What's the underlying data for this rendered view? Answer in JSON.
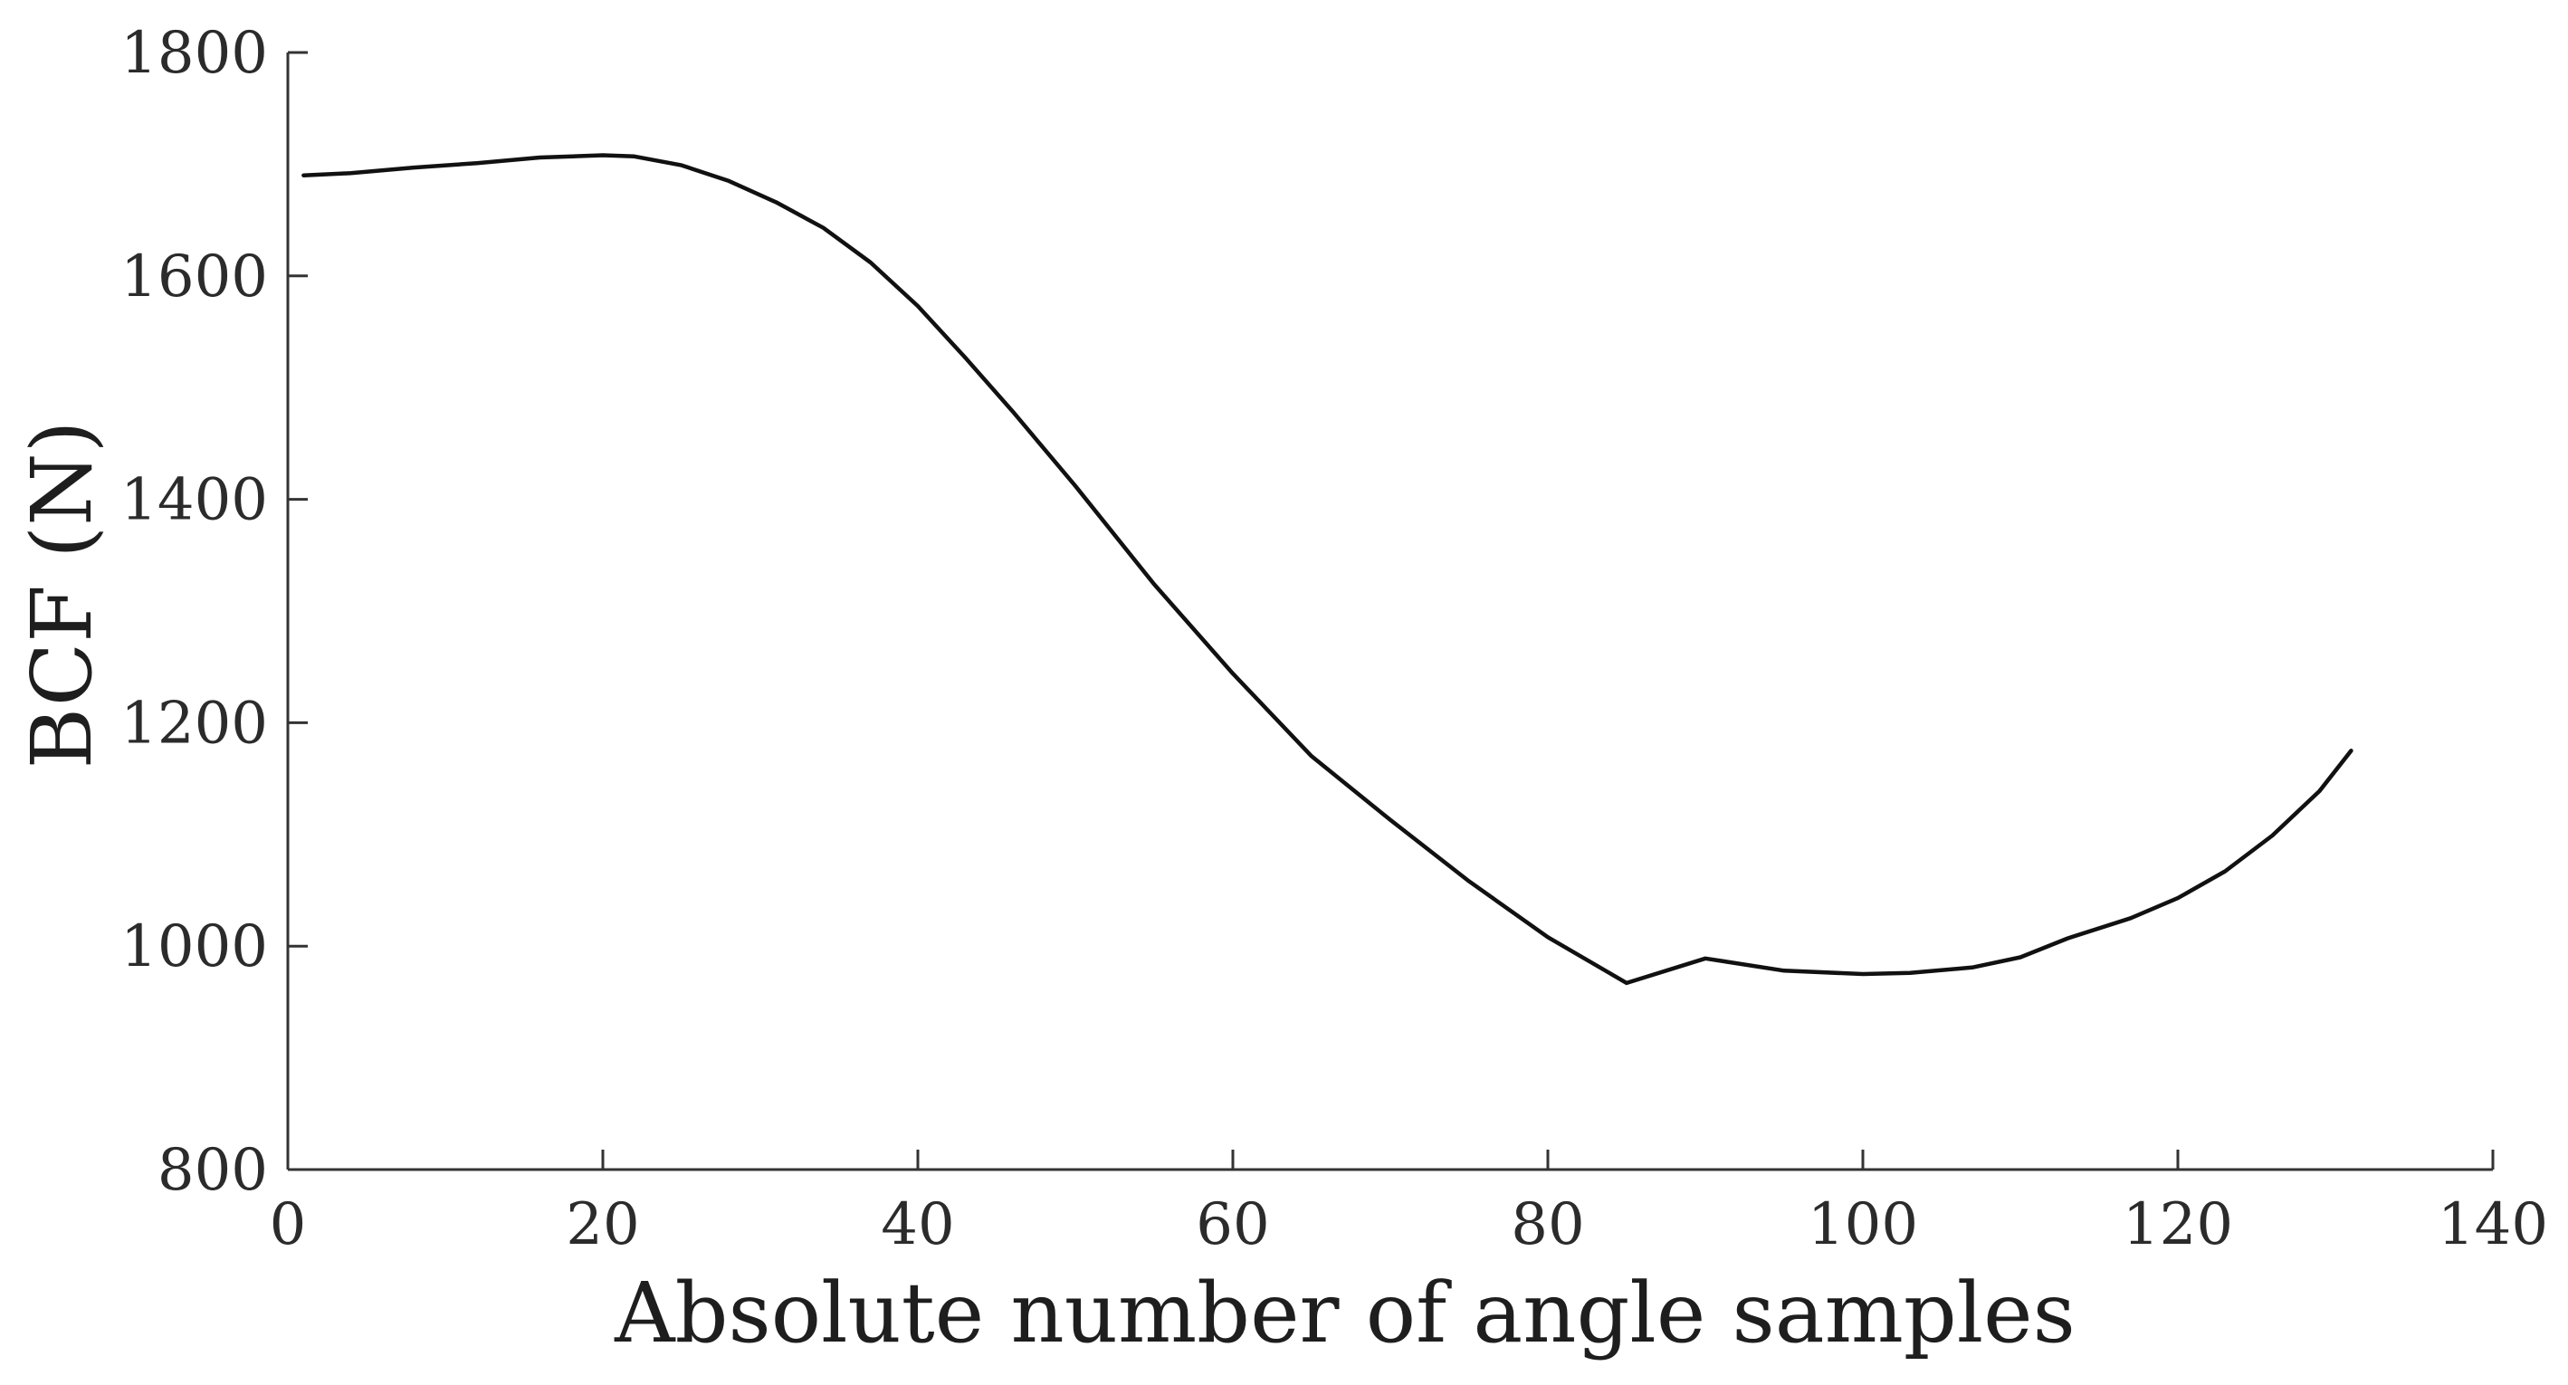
{
  "chart_data": {
    "type": "line",
    "title": "",
    "xlabel": "Absolute number of angle samples",
    "ylabel": "BCF (N)",
    "xlim": [
      0,
      140
    ],
    "ylim": [
      800,
      1800
    ],
    "xticks": [
      0,
      20,
      40,
      60,
      80,
      100,
      120,
      140
    ],
    "yticks": [
      800,
      1000,
      1200,
      1400,
      1600,
      1800
    ],
    "xtick_labels": [
      "0",
      "20",
      "40",
      "60",
      "80",
      "100",
      "120",
      "140"
    ],
    "ytick_labels": [
      "800",
      "1000",
      "1200",
      "1400",
      "1600",
      "1800"
    ],
    "grid": false,
    "legend": "none",
    "series": [
      {
        "color": "#111111",
        "x": [
          1,
          4,
          8,
          12,
          16,
          20,
          22,
          25,
          28,
          31,
          34,
          37,
          40,
          43,
          46,
          50,
          55,
          60,
          65,
          70,
          75,
          80,
          85,
          90,
          95,
          100,
          103,
          107,
          110,
          113,
          117,
          120,
          123,
          126,
          129,
          131
        ],
        "y": [
          1690,
          1692,
          1697,
          1701,
          1706,
          1708,
          1707,
          1699,
          1685,
          1666,
          1643,
          1612,
          1573,
          1527,
          1479,
          1412,
          1324,
          1244,
          1170,
          1113,
          1058,
          1008,
          967,
          989,
          978,
          975,
          976,
          981,
          990,
          1007,
          1025,
          1043,
          1067,
          1099,
          1139,
          1175
        ]
      }
    ]
  }
}
